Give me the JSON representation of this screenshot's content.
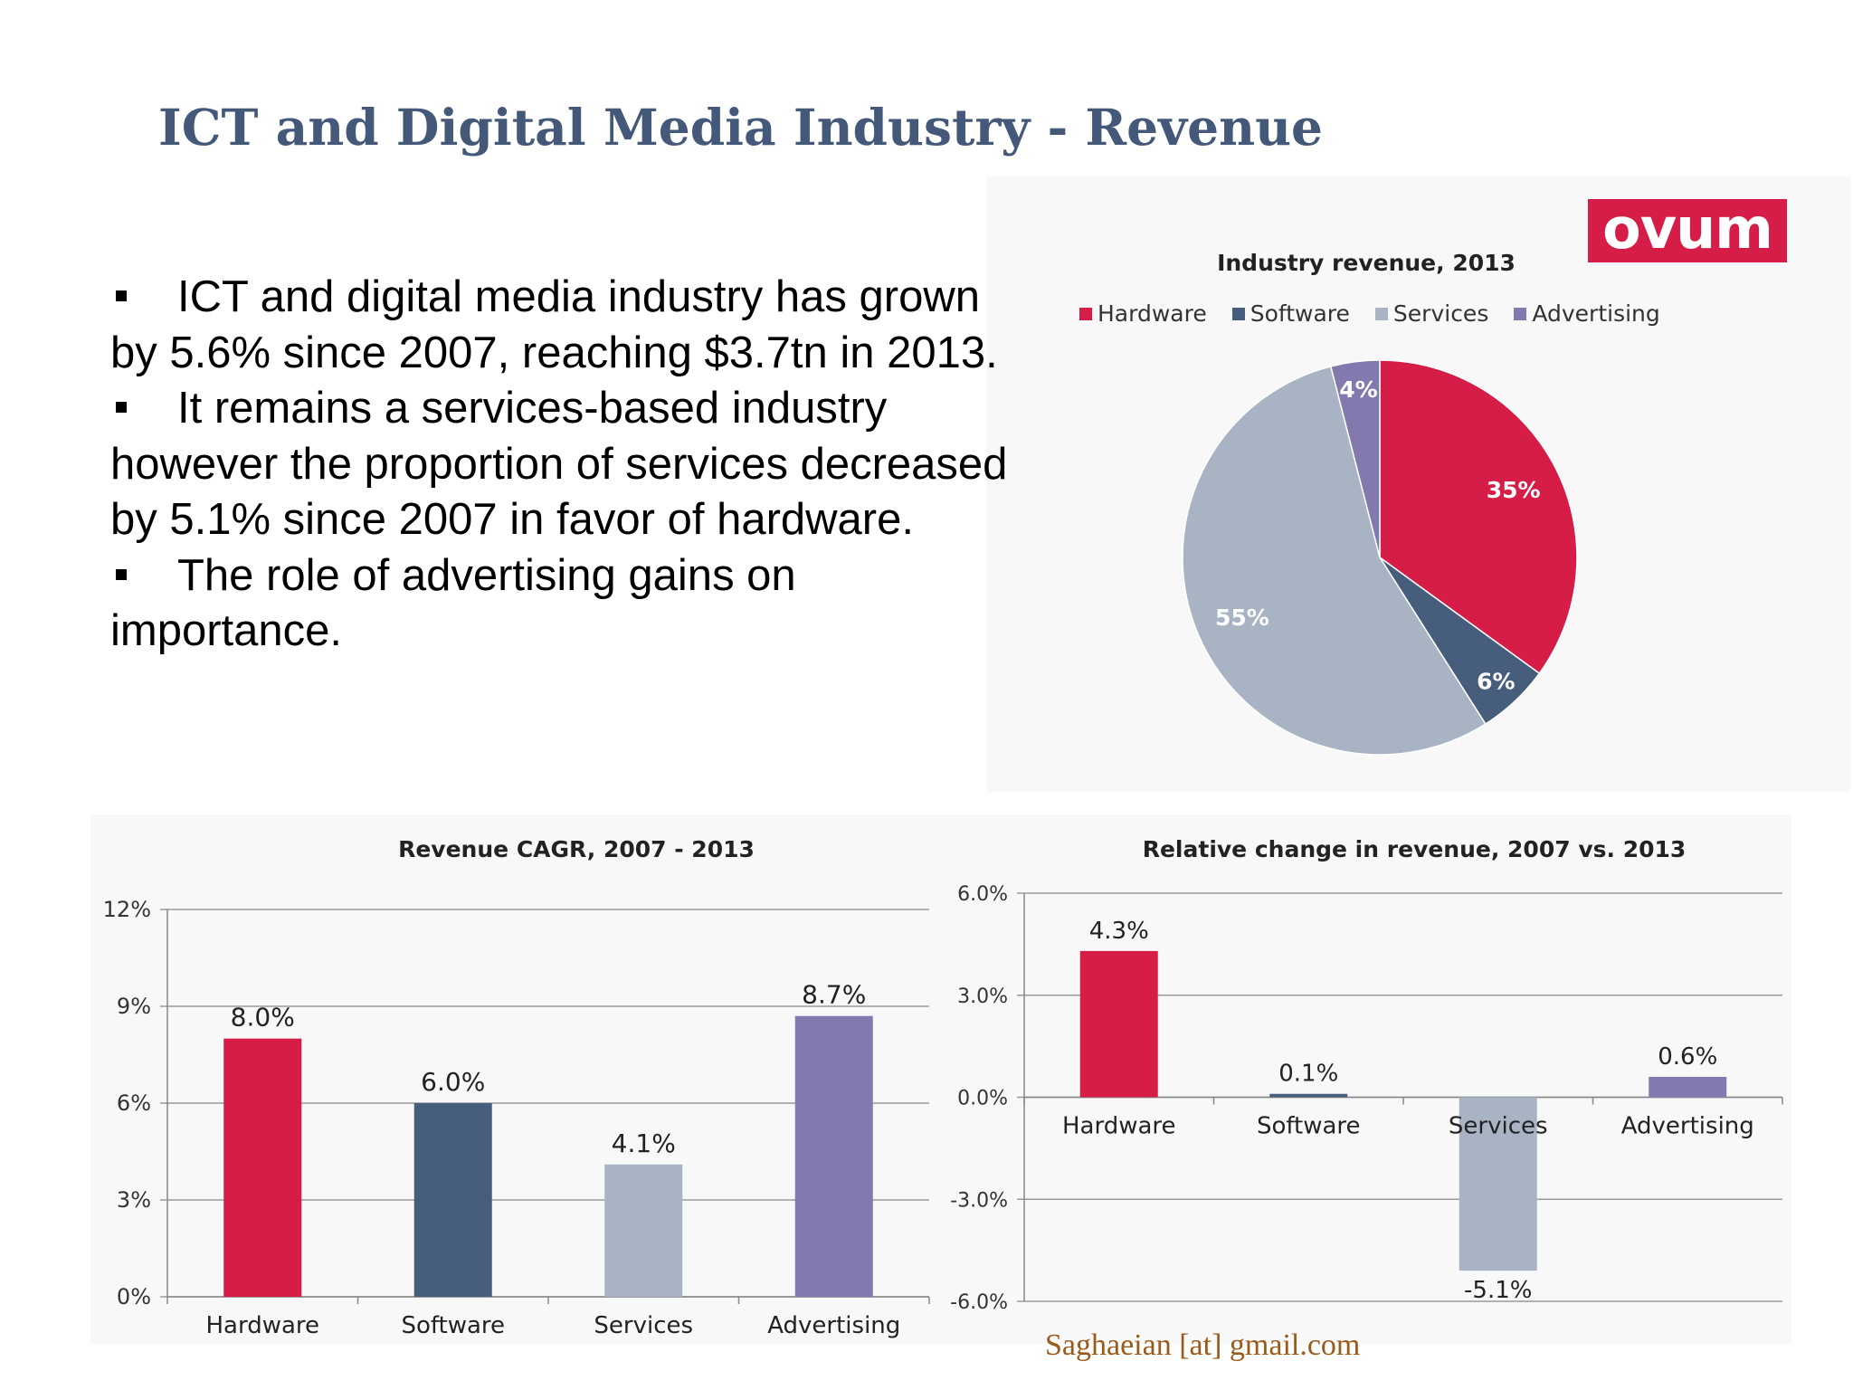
{
  "slide": {
    "title": "ICT and Digital Media Industry - Revenue",
    "bullets": [
      "ICT and digital media industry has grown by 5.6% since 2007, reaching $3.7tn in 2013.",
      "It remains a services-based industry however the proportion of services decreased by 5.1% since 2007 in favor of hardware.",
      "The role of advertising gains on importance."
    ],
    "logo_text": "ovum",
    "footer": "Saghaeian [at] gmail.com"
  },
  "colors": {
    "Hardware": "#d51d47",
    "Software": "#475d7c",
    "Services": "#a8b3c3",
    "Advertising": "#8479af",
    "title": "#44587a"
  },
  "chart_data": [
    {
      "type": "pie",
      "title": "Industry revenue, 2013",
      "legend": "top",
      "categories": [
        "Hardware",
        "Software",
        "Services",
        "Advertising"
      ],
      "values": [
        35,
        6,
        55,
        4
      ],
      "value_labels": [
        "35%",
        "6%",
        "55%",
        "4%"
      ]
    },
    {
      "type": "bar",
      "title": "Revenue CAGR, 2007 - 2013",
      "categories": [
        "Hardware",
        "Software",
        "Services",
        "Advertising"
      ],
      "values": [
        8.0,
        6.0,
        4.1,
        8.7
      ],
      "value_labels": [
        "8.0%",
        "6.0%",
        "4.1%",
        "8.7%"
      ],
      "ylim": [
        0,
        12
      ],
      "yticks": [
        "0%",
        "3%",
        "6%",
        "9%",
        "12%"
      ],
      "grid": true
    },
    {
      "type": "bar",
      "title": "Relative change in revenue, 2007 vs. 2013",
      "categories": [
        "Hardware",
        "Software",
        "Services",
        "Advertising"
      ],
      "values": [
        4.3,
        0.1,
        -5.1,
        0.6
      ],
      "value_labels": [
        "4.3%",
        "0.1%",
        "-5.1%",
        "0.6%"
      ],
      "ylim": [
        -6,
        6
      ],
      "yticks": [
        "-6.0%",
        "-3.0%",
        "0.0%",
        "3.0%",
        "6.0%"
      ],
      "grid": true
    }
  ]
}
